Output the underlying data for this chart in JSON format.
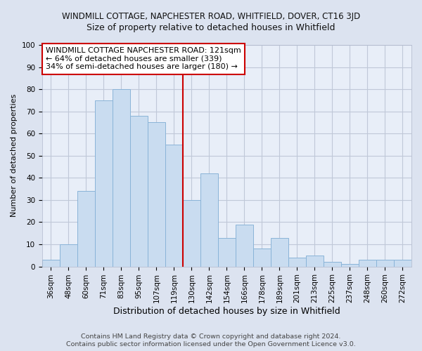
{
  "title1": "WINDMILL COTTAGE, NAPCHESTER ROAD, WHITFIELD, DOVER, CT16 3JD",
  "title2": "Size of property relative to detached houses in Whitfield",
  "xlabel": "Distribution of detached houses by size in Whitfield",
  "ylabel": "Number of detached properties",
  "footer1": "Contains HM Land Registry data © Crown copyright and database right 2024.",
  "footer2": "Contains public sector information licensed under the Open Government Licence v3.0.",
  "bins": [
    "36sqm",
    "48sqm",
    "60sqm",
    "71sqm",
    "83sqm",
    "95sqm",
    "107sqm",
    "119sqm",
    "130sqm",
    "142sqm",
    "154sqm",
    "166sqm",
    "178sqm",
    "189sqm",
    "201sqm",
    "213sqm",
    "225sqm",
    "237sqm",
    "248sqm",
    "260sqm",
    "272sqm"
  ],
  "values": [
    3,
    10,
    34,
    75,
    80,
    68,
    65,
    55,
    30,
    42,
    13,
    19,
    8,
    13,
    4,
    5,
    2,
    1,
    3,
    3,
    3
  ],
  "bar_color": "#c9dcf0",
  "bar_edge_color": "#8ab4d8",
  "vline_color": "#cc0000",
  "vline_bin_index": 7.5,
  "annotation_text": "WINDMILL COTTAGE NAPCHESTER ROAD: 121sqm\n← 64% of detached houses are smaller (339)\n34% of semi-detached houses are larger (180) →",
  "annotation_box_facecolor": "#ffffff",
  "annotation_box_edgecolor": "#cc0000",
  "ylim": [
    0,
    100
  ],
  "yticks": [
    0,
    10,
    20,
    30,
    40,
    50,
    60,
    70,
    80,
    90,
    100
  ],
  "fig_bg_color": "#dce3f0",
  "plot_bg_color": "#e8eef8",
  "grid_color": "#c0c8d8",
  "title1_fontsize": 8.5,
  "title2_fontsize": 9,
  "ylabel_fontsize": 8,
  "xlabel_fontsize": 9,
  "tick_fontsize": 7.5,
  "annotation_fontsize": 8,
  "footer_fontsize": 6.8
}
